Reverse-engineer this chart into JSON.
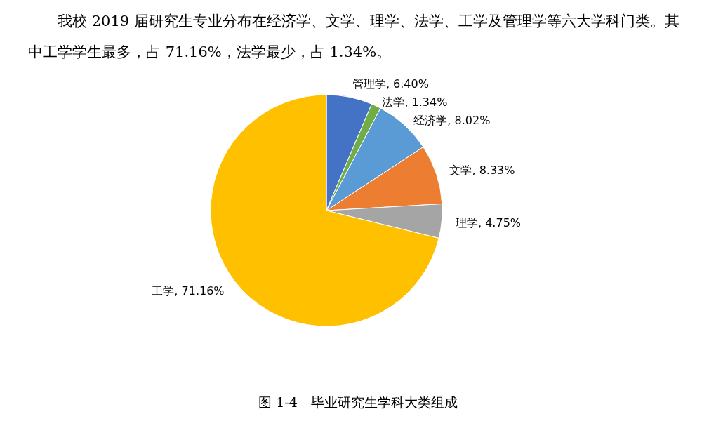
{
  "chart_data": {
    "type": "pie",
    "title": "图 1-4　毕业研究生学科大类组成",
    "annotations": [
      "我校 2019 届研究生专业分布在经济学、文学、理学、法学、工学及管理学等六大学科门类。其中工学学生最多，占 71.16%，法学最少，占 1.34%。"
    ],
    "categories": [
      "管理学",
      "法学",
      "经济学",
      "文学",
      "理学",
      "工学"
    ],
    "values": [
      6.4,
      1.34,
      8.02,
      8.33,
      4.75,
      71.16
    ],
    "value_labels": [
      "6.40%",
      "1.34%",
      "8.02%",
      "8.33%",
      "4.75%",
      "71.16%"
    ],
    "colors": [
      "#4472c4",
      "#70ad47",
      "#5b9bd5",
      "#ed7d31",
      "#a5a5a5",
      "#ffc000"
    ],
    "data_labels": true
  }
}
